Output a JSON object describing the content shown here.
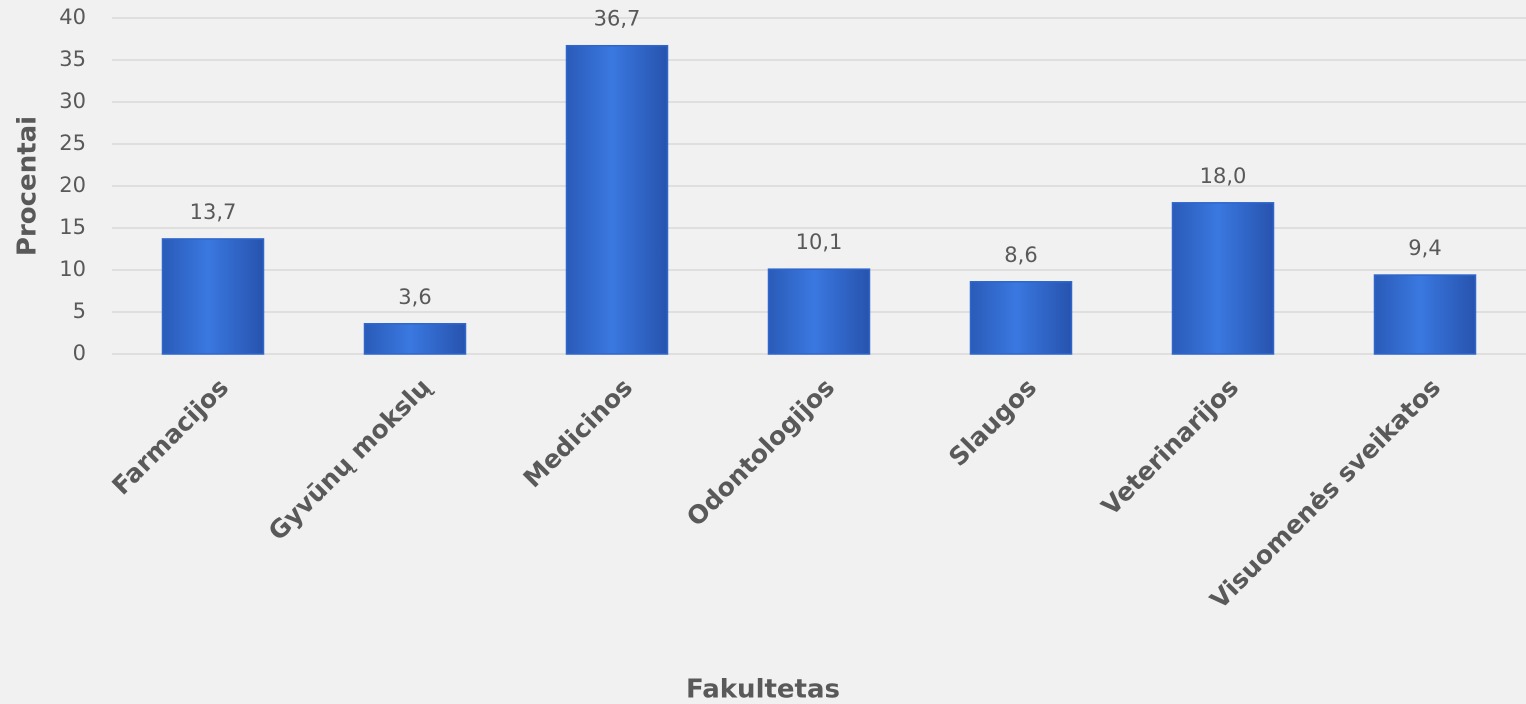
{
  "chart_data": {
    "type": "bar",
    "categories": [
      "Farmacijos",
      "Gyvūnų mokslų",
      "Medicinos",
      "Odontologijos",
      "Slaugos",
      "Veterinarijos",
      "Visuomenės sveikatos"
    ],
    "values": [
      13.7,
      3.6,
      36.7,
      10.1,
      8.6,
      18.0,
      9.4
    ],
    "value_labels": [
      "13,7",
      "3,6",
      "36,7",
      "10,1",
      "8,6",
      "18,0",
      "9,4"
    ],
    "color": "#2f66cc",
    "x_label": "Fakultetas",
    "y_label": "Procentai",
    "ylim": [
      0,
      40
    ],
    "yticks": [
      0,
      5,
      10,
      15,
      20,
      25,
      30,
      35,
      40
    ],
    "grid": true
  }
}
